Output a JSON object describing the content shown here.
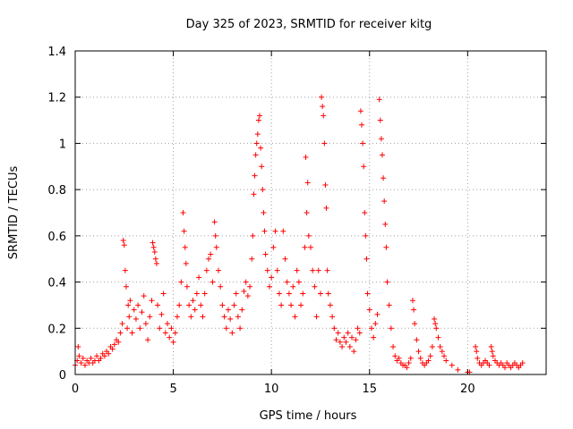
{
  "chart_data": {
    "type": "scatter",
    "title": "Day 325 of 2023, SRMTID for receiver kitg",
    "xlabel": "GPS time / hours",
    "ylabel": "SRMTID / TECUs",
    "xlim": [
      0,
      24
    ],
    "ylim": [
      0,
      1.4
    ],
    "xticks": [
      0,
      5,
      10,
      15,
      20
    ],
    "xtick_labels": [
      "0",
      "5",
      "10",
      "15",
      "20"
    ],
    "yticks": [
      0,
      0.2,
      0.4,
      0.6,
      0.8,
      1.0,
      1.2,
      1.4
    ],
    "ytick_labels": [
      "0",
      "0.2",
      "0.4",
      "0.6",
      "0.8",
      "1",
      "1.2",
      "1.4"
    ],
    "grid": true,
    "marker": "+",
    "color": "#ff0000",
    "series": [
      {
        "name": "SRMTID",
        "points": [
          [
            0.0,
            0.04
          ],
          [
            0.1,
            0.06
          ],
          [
            0.15,
            0.12
          ],
          [
            0.2,
            0.08
          ],
          [
            0.3,
            0.05
          ],
          [
            0.4,
            0.07
          ],
          [
            0.5,
            0.04
          ],
          [
            0.6,
            0.06
          ],
          [
            0.7,
            0.05
          ],
          [
            0.8,
            0.07
          ],
          [
            0.9,
            0.05
          ],
          [
            1.0,
            0.06
          ],
          [
            1.1,
            0.08
          ],
          [
            1.2,
            0.06
          ],
          [
            1.3,
            0.07
          ],
          [
            1.4,
            0.09
          ],
          [
            1.5,
            0.08
          ],
          [
            1.6,
            0.1
          ],
          [
            1.7,
            0.09
          ],
          [
            1.8,
            0.12
          ],
          [
            1.9,
            0.11
          ],
          [
            2.0,
            0.13
          ],
          [
            2.1,
            0.15
          ],
          [
            2.2,
            0.14
          ],
          [
            2.3,
            0.18
          ],
          [
            2.4,
            0.22
          ],
          [
            2.45,
            0.58
          ],
          [
            2.5,
            0.56
          ],
          [
            2.55,
            0.45
          ],
          [
            2.6,
            0.38
          ],
          [
            2.65,
            0.2
          ],
          [
            2.7,
            0.3
          ],
          [
            2.75,
            0.25
          ],
          [
            2.8,
            0.32
          ],
          [
            2.9,
            0.18
          ],
          [
            3.0,
            0.28
          ],
          [
            3.1,
            0.24
          ],
          [
            3.2,
            0.3
          ],
          [
            3.3,
            0.2
          ],
          [
            3.4,
            0.27
          ],
          [
            3.5,
            0.34
          ],
          [
            3.6,
            0.22
          ],
          [
            3.7,
            0.15
          ],
          [
            3.8,
            0.25
          ],
          [
            3.9,
            0.32
          ],
          [
            3.95,
            0.57
          ],
          [
            4.0,
            0.55
          ],
          [
            4.05,
            0.53
          ],
          [
            4.1,
            0.5
          ],
          [
            4.15,
            0.48
          ],
          [
            4.2,
            0.3
          ],
          [
            4.3,
            0.2
          ],
          [
            4.4,
            0.26
          ],
          [
            4.5,
            0.35
          ],
          [
            4.6,
            0.18
          ],
          [
            4.7,
            0.22
          ],
          [
            4.8,
            0.16
          ],
          [
            4.9,
            0.2
          ],
          [
            5.0,
            0.14
          ],
          [
            5.1,
            0.18
          ],
          [
            5.2,
            0.25
          ],
          [
            5.3,
            0.3
          ],
          [
            5.4,
            0.4
          ],
          [
            5.5,
            0.7
          ],
          [
            5.55,
            0.62
          ],
          [
            5.6,
            0.55
          ],
          [
            5.65,
            0.48
          ],
          [
            5.7,
            0.38
          ],
          [
            5.8,
            0.3
          ],
          [
            5.9,
            0.25
          ],
          [
            6.0,
            0.32
          ],
          [
            6.1,
            0.28
          ],
          [
            6.2,
            0.35
          ],
          [
            6.3,
            0.42
          ],
          [
            6.4,
            0.3
          ],
          [
            6.5,
            0.25
          ],
          [
            6.6,
            0.35
          ],
          [
            6.7,
            0.45
          ],
          [
            6.8,
            0.5
          ],
          [
            6.9,
            0.52
          ],
          [
            7.0,
            0.4
          ],
          [
            7.1,
            0.66
          ],
          [
            7.15,
            0.6
          ],
          [
            7.2,
            0.55
          ],
          [
            7.3,
            0.45
          ],
          [
            7.4,
            0.38
          ],
          [
            7.5,
            0.3
          ],
          [
            7.6,
            0.25
          ],
          [
            7.7,
            0.2
          ],
          [
            7.8,
            0.28
          ],
          [
            7.9,
            0.24
          ],
          [
            8.0,
            0.18
          ],
          [
            8.1,
            0.3
          ],
          [
            8.2,
            0.35
          ],
          [
            8.3,
            0.25
          ],
          [
            8.4,
            0.2
          ],
          [
            8.5,
            0.28
          ],
          [
            8.6,
            0.36
          ],
          [
            8.7,
            0.4
          ],
          [
            8.8,
            0.34
          ],
          [
            8.9,
            0.38
          ],
          [
            9.0,
            0.5
          ],
          [
            9.05,
            0.6
          ],
          [
            9.1,
            0.78
          ],
          [
            9.15,
            0.86
          ],
          [
            9.2,
            0.95
          ],
          [
            9.25,
            1.0
          ],
          [
            9.3,
            1.04
          ],
          [
            9.35,
            1.1
          ],
          [
            9.4,
            1.12
          ],
          [
            9.45,
            0.98
          ],
          [
            9.5,
            0.9
          ],
          [
            9.55,
            0.8
          ],
          [
            9.6,
            0.7
          ],
          [
            9.65,
            0.62
          ],
          [
            9.7,
            0.52
          ],
          [
            9.8,
            0.45
          ],
          [
            9.9,
            0.38
          ],
          [
            10.0,
            0.42
          ],
          [
            10.1,
            0.55
          ],
          [
            10.2,
            0.62
          ],
          [
            10.3,
            0.45
          ],
          [
            10.4,
            0.35
          ],
          [
            10.5,
            0.3
          ],
          [
            10.6,
            0.62
          ],
          [
            10.7,
            0.5
          ],
          [
            10.8,
            0.4
          ],
          [
            10.9,
            0.35
          ],
          [
            11.0,
            0.3
          ],
          [
            11.1,
            0.38
          ],
          [
            11.2,
            0.25
          ],
          [
            11.3,
            0.45
          ],
          [
            11.4,
            0.4
          ],
          [
            11.5,
            0.3
          ],
          [
            11.6,
            0.35
          ],
          [
            11.7,
            0.55
          ],
          [
            11.75,
            0.94
          ],
          [
            11.8,
            0.7
          ],
          [
            11.85,
            0.83
          ],
          [
            11.9,
            0.6
          ],
          [
            12.0,
            0.55
          ],
          [
            12.1,
            0.45
          ],
          [
            12.2,
            0.38
          ],
          [
            12.3,
            0.25
          ],
          [
            12.4,
            0.45
          ],
          [
            12.5,
            0.35
          ],
          [
            12.55,
            1.2
          ],
          [
            12.6,
            1.16
          ],
          [
            12.65,
            1.12
          ],
          [
            12.7,
            1.0
          ],
          [
            12.75,
            0.82
          ],
          [
            12.8,
            0.72
          ],
          [
            12.85,
            0.45
          ],
          [
            12.9,
            0.35
          ],
          [
            13.0,
            0.3
          ],
          [
            13.1,
            0.25
          ],
          [
            13.2,
            0.2
          ],
          [
            13.3,
            0.15
          ],
          [
            13.4,
            0.18
          ],
          [
            13.5,
            0.14
          ],
          [
            13.6,
            0.12
          ],
          [
            13.7,
            0.16
          ],
          [
            13.8,
            0.14
          ],
          [
            13.9,
            0.18
          ],
          [
            14.0,
            0.12
          ],
          [
            14.1,
            0.16
          ],
          [
            14.2,
            0.1
          ],
          [
            14.3,
            0.15
          ],
          [
            14.4,
            0.2
          ],
          [
            14.5,
            0.18
          ],
          [
            14.55,
            1.14
          ],
          [
            14.6,
            1.08
          ],
          [
            14.65,
            1.0
          ],
          [
            14.7,
            0.9
          ],
          [
            14.75,
            0.7
          ],
          [
            14.8,
            0.6
          ],
          [
            14.85,
            0.5
          ],
          [
            14.9,
            0.35
          ],
          [
            15.0,
            0.28
          ],
          [
            15.1,
            0.2
          ],
          [
            15.2,
            0.16
          ],
          [
            15.3,
            0.22
          ],
          [
            15.4,
            0.26
          ],
          [
            15.5,
            1.19
          ],
          [
            15.55,
            1.1
          ],
          [
            15.6,
            1.02
          ],
          [
            15.65,
            0.95
          ],
          [
            15.7,
            0.85
          ],
          [
            15.75,
            0.75
          ],
          [
            15.8,
            0.65
          ],
          [
            15.85,
            0.55
          ],
          [
            15.9,
            0.4
          ],
          [
            16.0,
            0.3
          ],
          [
            16.1,
            0.2
          ],
          [
            16.2,
            0.12
          ],
          [
            16.3,
            0.08
          ],
          [
            16.4,
            0.06
          ],
          [
            16.5,
            0.07
          ],
          [
            16.6,
            0.05
          ],
          [
            16.7,
            0.04
          ],
          [
            16.8,
            0.04
          ],
          [
            16.9,
            0.03
          ],
          [
            17.0,
            0.05
          ],
          [
            17.1,
            0.07
          ],
          [
            17.2,
            0.32
          ],
          [
            17.25,
            0.28
          ],
          [
            17.3,
            0.22
          ],
          [
            17.4,
            0.15
          ],
          [
            17.5,
            0.1
          ],
          [
            17.6,
            0.07
          ],
          [
            17.7,
            0.05
          ],
          [
            17.8,
            0.04
          ],
          [
            17.9,
            0.05
          ],
          [
            18.0,
            0.06
          ],
          [
            18.1,
            0.08
          ],
          [
            18.2,
            0.12
          ],
          [
            18.3,
            0.24
          ],
          [
            18.35,
            0.22
          ],
          [
            18.4,
            0.2
          ],
          [
            18.5,
            0.16
          ],
          [
            18.6,
            0.12
          ],
          [
            18.7,
            0.1
          ],
          [
            18.8,
            0.08
          ],
          [
            18.9,
            0.06
          ],
          [
            19.2,
            0.04
          ],
          [
            19.5,
            0.02
          ],
          [
            20.0,
            0.01
          ],
          [
            20.1,
            0.01
          ],
          [
            20.4,
            0.12
          ],
          [
            20.45,
            0.1
          ],
          [
            20.5,
            0.07
          ],
          [
            20.6,
            0.05
          ],
          [
            20.7,
            0.04
          ],
          [
            20.8,
            0.05
          ],
          [
            20.9,
            0.06
          ],
          [
            21.0,
            0.05
          ],
          [
            21.1,
            0.04
          ],
          [
            21.2,
            0.12
          ],
          [
            21.25,
            0.1
          ],
          [
            21.3,
            0.08
          ],
          [
            21.4,
            0.06
          ],
          [
            21.5,
            0.05
          ],
          [
            21.6,
            0.04
          ],
          [
            21.7,
            0.05
          ],
          [
            21.8,
            0.04
          ],
          [
            21.9,
            0.03
          ],
          [
            22.0,
            0.05
          ],
          [
            22.1,
            0.04
          ],
          [
            22.2,
            0.03
          ],
          [
            22.3,
            0.04
          ],
          [
            22.4,
            0.05
          ],
          [
            22.5,
            0.04
          ],
          [
            22.6,
            0.03
          ],
          [
            22.7,
            0.04
          ],
          [
            22.8,
            0.05
          ]
        ]
      }
    ]
  }
}
